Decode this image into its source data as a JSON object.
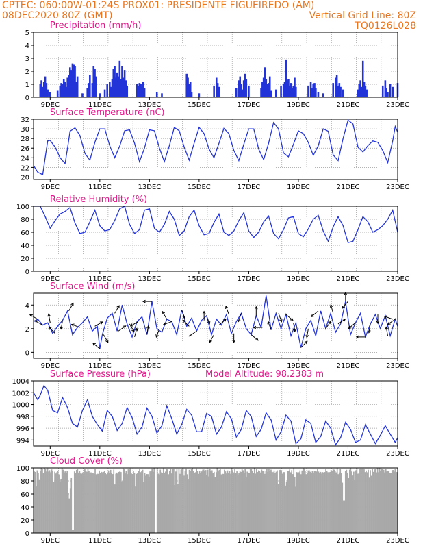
{
  "header": {
    "line1_left": "CPTEC:   060:00W-01:24S   PROX01: PRESIDENTE FIGUEIREDO (AM)",
    "line2_left": "08DEC2020 80Z (GMT)",
    "line2_right": "Vertical Grid Line: 80Z",
    "line3_right": "TQ0126L028"
  },
  "colors": {
    "header": "#e8761e",
    "title": "#e0188c",
    "line": "#2234d8",
    "cloud": "#a9a9a9",
    "grid": "#999999"
  },
  "chart_data": [
    {
      "type": "bar",
      "title": "Precipitation (mm/h)",
      "ylim": [
        0,
        5
      ],
      "yticks": [
        "0",
        "1",
        "2",
        "3",
        "4",
        "5"
      ],
      "xticks": [
        "9DEC",
        "11DEC",
        "13DEC",
        "15DEC",
        "17DEC",
        "19DEC",
        "21DEC",
        "23DEC"
      ],
      "x_range_days": [
        8.33,
        23.0
      ],
      "days": [
        8.6,
        8.65,
        8.7,
        8.75,
        8.8,
        8.85,
        8.9,
        9.0,
        9.3,
        9.4,
        9.45,
        9.5,
        9.55,
        9.6,
        9.65,
        9.7,
        9.75,
        9.8,
        9.85,
        9.9,
        9.95,
        10.0,
        10.05,
        10.1,
        10.3,
        10.5,
        10.55,
        10.6,
        10.7,
        10.75,
        10.8,
        10.85,
        11.0,
        11.2,
        11.3,
        11.4,
        11.45,
        11.5,
        11.55,
        11.6,
        11.65,
        11.7,
        11.75,
        11.8,
        11.85,
        11.9,
        11.95,
        12.0,
        12.05,
        12.1,
        12.5,
        12.55,
        12.6,
        12.65,
        12.7,
        12.75,
        12.8,
        13.3,
        13.5,
        14.5,
        14.55,
        14.6,
        14.65,
        14.7,
        15.0,
        15.6,
        15.7,
        15.75,
        15.8,
        16.5,
        16.6,
        16.65,
        16.7,
        16.75,
        16.8,
        16.85,
        16.9,
        17.0,
        17.5,
        17.55,
        17.6,
        17.65,
        17.7,
        17.75,
        17.8,
        17.85,
        17.9,
        18.1,
        18.3,
        18.4,
        18.45,
        18.5,
        18.55,
        18.6,
        18.65,
        18.7,
        18.75,
        18.8,
        18.85,
        18.9,
        19.4,
        19.5,
        19.55,
        19.6,
        19.65,
        19.7,
        19.8,
        20.0,
        20.4,
        20.5,
        20.55,
        20.6,
        20.65,
        20.7,
        20.8,
        21.4,
        21.45,
        21.5,
        21.55,
        21.6,
        21.65,
        21.7,
        21.75,
        22.4,
        22.5,
        22.55,
        22.6,
        22.7,
        22.8,
        23.0
      ],
      "values": [
        1.0,
        1.3,
        0.8,
        1.2,
        1.6,
        1.1,
        0.6,
        0.4,
        0.5,
        0.9,
        1.1,
        1.0,
        1.4,
        1.2,
        0.8,
        1.5,
        1.7,
        2.3,
        2.1,
        2.6,
        2.5,
        2.4,
        1.2,
        1.6,
        0.3,
        0.7,
        1.1,
        1.7,
        1.1,
        2.4,
        2.2,
        1.6,
        0.3,
        0.6,
        1.0,
        1.2,
        0.8,
        1.4,
        2.2,
        2.4,
        1.5,
        1.9,
        1.6,
        2.8,
        1.4,
        2.4,
        1.5,
        2.1,
        1.3,
        0.9,
        1.0,
        0.9,
        1.1,
        1.0,
        0.8,
        1.2,
        0.7,
        0.4,
        0.3,
        1.8,
        1.5,
        1.0,
        1.2,
        0.4,
        0.3,
        0.9,
        1.5,
        1.1,
        0.8,
        0.7,
        1.3,
        1.6,
        1.0,
        0.6,
        1.3,
        1.8,
        1.4,
        0.9,
        0.7,
        1.2,
        1.5,
        2.3,
        1.4,
        1.0,
        1.1,
        1.6,
        0.5,
        0.6,
        0.9,
        1.0,
        1.2,
        2.9,
        1.3,
        1.4,
        0.9,
        1.1,
        0.7,
        0.9,
        1.5,
        0.8,
        0.9,
        1.2,
        0.7,
        1.0,
        1.1,
        0.7,
        0.4,
        0.3,
        1.1,
        1.5,
        1.7,
        0.9,
        1.1,
        0.8,
        0.6,
        0.6,
        1.0,
        1.3,
        0.8,
        2.8,
        1.2,
        0.9,
        0.6,
        0.9,
        1.3,
        0.7,
        0.4,
        1.0,
        0.8,
        1.1
      ]
    },
    {
      "type": "line",
      "title": "Surface Temperature (nC)",
      "ylim": [
        19.5,
        32
      ],
      "yticks": [
        "20",
        "22",
        "24",
        "26",
        "28",
        "30",
        "32"
      ],
      "xticks": [
        "9DEC",
        "11DEC",
        "13DEC",
        "15DEC",
        "17DEC",
        "19DEC",
        "21DEC",
        "23DEC"
      ],
      "x_range_days": [
        8.33,
        23.0
      ],
      "days": [
        8.33,
        8.5,
        8.7,
        8.8,
        8.9,
        9.0,
        9.2,
        9.4,
        9.6,
        9.7,
        9.8,
        10.0,
        10.2,
        10.4,
        10.6,
        10.8,
        11.0,
        11.2,
        11.4,
        11.6,
        11.8,
        12.0,
        12.2,
        12.4,
        12.6,
        12.8,
        13.0,
        13.2,
        13.4,
        13.6,
        13.8,
        14.0,
        14.2,
        14.4,
        14.6,
        14.8,
        15.0,
        15.2,
        15.4,
        15.6,
        15.8,
        16.0,
        16.2,
        16.4,
        16.6,
        16.8,
        17.0,
        17.2,
        17.4,
        17.6,
        17.8,
        18.0,
        18.2,
        18.4,
        18.6,
        18.8,
        19.0,
        19.2,
        19.4,
        19.6,
        19.8,
        20.0,
        20.2,
        20.4,
        20.6,
        20.8,
        21.0,
        21.2,
        21.4,
        21.6,
        21.8,
        22.0,
        22.2,
        22.4,
        22.6,
        22.8,
        22.9,
        23.0
      ],
      "values": [
        22.4,
        21.0,
        20.5,
        24.0,
        27.5,
        27.6,
        26.2,
        24.0,
        22.8,
        26.0,
        29.5,
        30.2,
        28.6,
        24.9,
        23.5,
        27.2,
        30.0,
        30.0,
        26.5,
        24.0,
        26.4,
        29.6,
        29.8,
        27.0,
        23.2,
        26.0,
        29.8,
        29.6,
        26.0,
        23.2,
        26.5,
        30.3,
        29.6,
        26.2,
        23.5,
        27.0,
        30.3,
        29.0,
        25.8,
        24.0,
        27.0,
        30.1,
        29.0,
        25.5,
        23.4,
        26.8,
        30.0,
        30.0,
        25.8,
        23.6,
        27.0,
        31.3,
        30.0,
        25.0,
        24.2,
        26.8,
        29.6,
        29.0,
        27.2,
        24.5,
        26.5,
        30.0,
        29.5,
        24.6,
        23.4,
        28.0,
        31.8,
        31.0,
        26.2,
        25.2,
        26.5,
        27.5,
        27.2,
        25.5,
        23.0,
        27.5,
        30.5,
        29.3
      ]
    },
    {
      "type": "line",
      "title": "Relative Humidity (%)",
      "ylim": [
        0,
        100
      ],
      "yticks": [
        "0",
        "20",
        "40",
        "60",
        "80",
        "100"
      ],
      "xticks": [
        "9DEC",
        "11DEC",
        "13DEC",
        "15DEC",
        "17DEC",
        "19DEC",
        "21DEC",
        "23DEC"
      ],
      "x_range_days": [
        8.33,
        23.0
      ],
      "days": [
        8.33,
        8.6,
        8.8,
        9.0,
        9.2,
        9.4,
        9.6,
        9.8,
        10.0,
        10.2,
        10.4,
        10.6,
        10.8,
        11.0,
        11.2,
        11.4,
        11.6,
        11.8,
        12.0,
        12.2,
        12.4,
        12.6,
        12.8,
        13.0,
        13.2,
        13.4,
        13.6,
        13.8,
        14.0,
        14.2,
        14.4,
        14.6,
        14.8,
        15.0,
        15.2,
        15.4,
        15.6,
        15.8,
        16.0,
        16.2,
        16.4,
        16.6,
        16.8,
        17.0,
        17.2,
        17.4,
        17.6,
        17.8,
        18.0,
        18.2,
        18.4,
        18.6,
        18.8,
        19.0,
        19.2,
        19.4,
        19.6,
        19.8,
        20.0,
        20.2,
        20.4,
        20.6,
        20.8,
        21.0,
        21.2,
        21.4,
        21.6,
        21.8,
        22.0,
        22.2,
        22.4,
        22.6,
        22.8,
        23.0
      ],
      "values": [
        100,
        100,
        84,
        66,
        78,
        88,
        92,
        98,
        74,
        58,
        60,
        76,
        94,
        70,
        62,
        64,
        78,
        96,
        100,
        72,
        58,
        64,
        94,
        96,
        66,
        60,
        72,
        92,
        80,
        55,
        62,
        84,
        94,
        70,
        56,
        58,
        75,
        88,
        60,
        55,
        62,
        78,
        90,
        62,
        52,
        60,
        76,
        85,
        58,
        50,
        64,
        82,
        84,
        58,
        53,
        65,
        80,
        86,
        62,
        46,
        68,
        84,
        70,
        44,
        46,
        64,
        84,
        76,
        60,
        64,
        70,
        80,
        94,
        60
      ]
    },
    {
      "type": "line",
      "title": "Surface Wind (m/s)",
      "ylim": [
        -0.5,
        5
      ],
      "yticks": [
        "0",
        "2",
        "4"
      ],
      "xticks": [
        "9DEC",
        "11DEC",
        "13DEC",
        "15DEC",
        "17DEC",
        "19DEC",
        "21DEC",
        "23DEC"
      ],
      "x_range_days": [
        8.33,
        23.0
      ],
      "days": [
        8.33,
        8.5,
        8.7,
        8.9,
        9.1,
        9.3,
        9.5,
        9.7,
        9.9,
        10.1,
        10.3,
        10.5,
        10.7,
        10.9,
        11.0,
        11.1,
        11.3,
        11.5,
        11.7,
        11.9,
        12.1,
        12.3,
        12.5,
        12.7,
        12.9,
        13.1,
        13.3,
        13.5,
        13.7,
        13.9,
        14.1,
        14.3,
        14.5,
        14.7,
        14.9,
        15.1,
        15.3,
        15.5,
        15.7,
        15.9,
        16.1,
        16.3,
        16.5,
        16.7,
        16.9,
        17.1,
        17.3,
        17.5,
        17.7,
        17.9,
        18.1,
        18.3,
        18.5,
        18.7,
        18.9,
        19.1,
        19.3,
        19.5,
        19.7,
        19.9,
        20.1,
        20.3,
        20.5,
        20.7,
        20.9,
        21.1,
        21.3,
        21.5,
        21.7,
        21.9,
        22.1,
        22.3,
        22.5,
        22.7,
        22.9,
        23.0
      ],
      "values": [
        2.6,
        2.8,
        2.3,
        2.5,
        1.6,
        2.2,
        2.7,
        3.5,
        1.5,
        2.1,
        2.5,
        3.0,
        1.8,
        2.2,
        0.3,
        1.5,
        2.9,
        3.3,
        1.8,
        4.0,
        2.4,
        1.3,
        2.6,
        3.0,
        1.5,
        4.3,
        2.0,
        1.7,
        2.8,
        2.6,
        1.5,
        3.6,
        2.2,
        2.9,
        1.8,
        2.7,
        3.1,
        1.5,
        2.8,
        2.3,
        3.2,
        1.6,
        2.6,
        3.3,
        2.0,
        1.5,
        3.1,
        2.1,
        4.8,
        1.9,
        3.3,
        2.0,
        3.2,
        1.4,
        2.5,
        0.4,
        2.0,
        2.7,
        1.4,
        3.5,
        2.0,
        3.3,
        1.7,
        2.4,
        4.3,
        1.5,
        2.5,
        3.3,
        1.3,
        2.4,
        3.2,
        2.0,
        3.1,
        1.4,
        2.8,
        2.2
      ],
      "arrows": [
        [
          8.5,
          150
        ],
        [
          8.7,
          150
        ],
        [
          9.0,
          100
        ],
        [
          9.2,
          135
        ],
        [
          9.5,
          260
        ],
        [
          9.75,
          60
        ],
        [
          10.2,
          160
        ],
        [
          10.8,
          30
        ],
        [
          11.0,
          140
        ],
        [
          11.15,
          300
        ],
        [
          11.6,
          60
        ],
        [
          11.75,
          35
        ],
        [
          12.2,
          300
        ],
        [
          12.4,
          75
        ],
        [
          12.55,
          210
        ],
        [
          12.9,
          80
        ],
        [
          13.1,
          180
        ],
        [
          13.4,
          250
        ],
        [
          13.7,
          120
        ],
        [
          13.9,
          200
        ],
        [
          14.3,
          290
        ],
        [
          14.6,
          135
        ],
        [
          14.9,
          215
        ],
        [
          15.2,
          90
        ],
        [
          15.3,
          290
        ],
        [
          15.6,
          240
        ],
        [
          15.8,
          40
        ],
        [
          16.2,
          110
        ],
        [
          16.4,
          270
        ],
        [
          16.7,
          250
        ],
        [
          17.1,
          320
        ],
        [
          17.3,
          90
        ],
        [
          17.55,
          180
        ],
        [
          17.9,
          110
        ],
        [
          18.2,
          290
        ],
        [
          18.5,
          320
        ],
        [
          18.8,
          280
        ],
        [
          19.1,
          45
        ],
        [
          19.4,
          260
        ],
        [
          19.8,
          220
        ],
        [
          20.1,
          55
        ],
        [
          20.4,
          105
        ],
        [
          20.6,
          35
        ],
        [
          20.9,
          90
        ],
        [
          21.0,
          230
        ],
        [
          21.3,
          220
        ],
        [
          21.7,
          180
        ],
        [
          21.9,
          260
        ],
        [
          22.2,
          270
        ],
        [
          22.6,
          100
        ],
        [
          22.8,
          160
        ],
        [
          22.9,
          215
        ]
      ]
    },
    {
      "type": "line",
      "title": "Surface Pressure (hPa)",
      "annotation": "Model Altitude: 98.2383 m",
      "ylim": [
        993,
        1004
      ],
      "yticks": [
        "994",
        "996",
        "998",
        "1000",
        "1002",
        "1004"
      ],
      "xticks": [
        "9DEC",
        "11DEC",
        "13DEC",
        "15DEC",
        "17DEC",
        "19DEC",
        "21DEC",
        "23DEC"
      ],
      "x_range_days": [
        8.33,
        23.0
      ],
      "days": [
        8.33,
        8.5,
        8.6,
        8.75,
        8.9,
        9.1,
        9.3,
        9.5,
        9.7,
        9.9,
        10.1,
        10.3,
        10.5,
        10.7,
        10.9,
        11.1,
        11.3,
        11.5,
        11.7,
        11.9,
        12.1,
        12.3,
        12.5,
        12.7,
        12.9,
        13.1,
        13.3,
        13.5,
        13.7,
        13.9,
        14.1,
        14.3,
        14.5,
        14.7,
        14.9,
        15.1,
        15.3,
        15.5,
        15.7,
        15.9,
        16.1,
        16.3,
        16.5,
        16.7,
        16.9,
        17.1,
        17.3,
        17.5,
        17.7,
        17.9,
        18.1,
        18.3,
        18.5,
        18.7,
        18.9,
        19.1,
        19.3,
        19.5,
        19.7,
        19.9,
        20.1,
        20.3,
        20.5,
        20.7,
        20.9,
        21.1,
        21.3,
        21.5,
        21.7,
        21.9,
        22.1,
        22.3,
        22.5,
        22.7,
        22.9,
        23.0
      ],
      "values": [
        1002.0,
        1000.8,
        1001.6,
        1003.2,
        1002.4,
        999.0,
        998.6,
        1001.2,
        999.5,
        996.8,
        996.2,
        999.0,
        1000.8,
        998.0,
        996.6,
        995.5,
        999.0,
        998.0,
        995.6,
        996.8,
        999.5,
        997.8,
        995.0,
        996.2,
        999.4,
        998.0,
        995.2,
        996.4,
        999.8,
        997.6,
        995.0,
        996.6,
        999.2,
        998.2,
        995.4,
        995.4,
        998.5,
        998.0,
        995.0,
        996.2,
        998.8,
        997.6,
        994.5,
        995.8,
        999.0,
        998.0,
        994.6,
        995.8,
        998.6,
        997.4,
        994.0,
        995.4,
        998.2,
        997.2,
        993.4,
        994.2,
        997.4,
        996.8,
        993.6,
        994.6,
        997.2,
        996.0,
        993.2,
        994.4,
        997.0,
        995.8,
        993.6,
        994.0,
        996.6,
        995.0,
        993.4,
        994.8,
        996.4,
        995.0,
        993.6,
        994.4
      ]
    },
    {
      "type": "bar",
      "title": "Cloud Cover (%)",
      "ylim": [
        0,
        100
      ],
      "yticks": [
        "0",
        "20",
        "40",
        "60",
        "80",
        "100"
      ],
      "xticks": [
        "9DEC",
        "11DEC",
        "13DEC",
        "15DEC",
        "17DEC",
        "19DEC",
        "21DEC",
        "23DEC"
      ],
      "x_range_days": [
        8.33,
        23.0
      ],
      "color": "#a9a9a9"
    }
  ]
}
